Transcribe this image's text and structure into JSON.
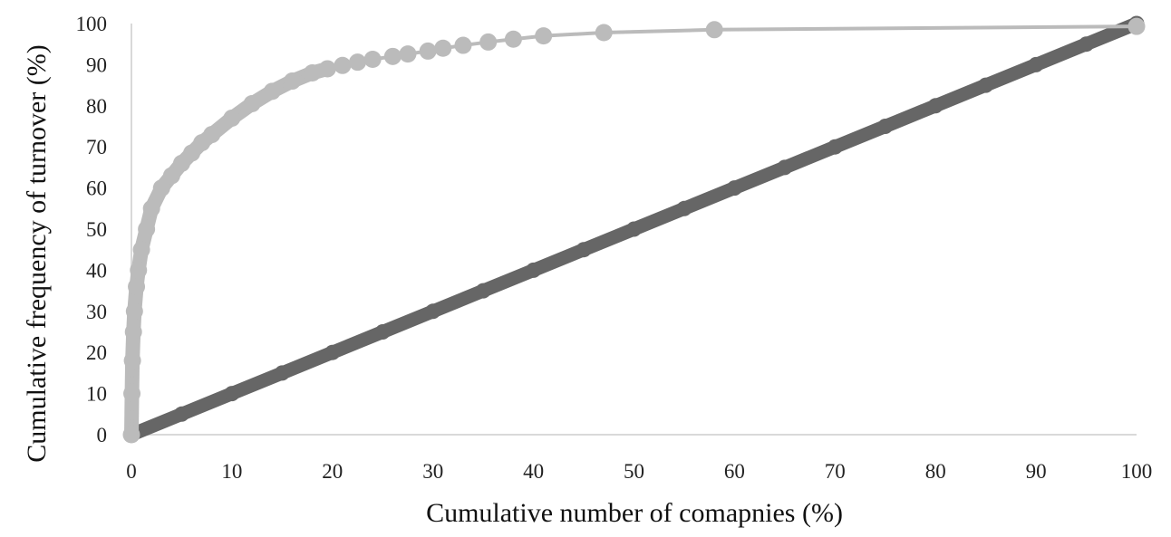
{
  "chart_data": {
    "type": "scatter",
    "title": "",
    "xlabel": "Cumulative number of comapnies (%)",
    "ylabel": "Cumulative frequency of turnover (%)",
    "xlim": [
      0,
      100
    ],
    "ylim": [
      0,
      100
    ],
    "x_ticks": [
      "0",
      "10",
      "20",
      "30",
      "40",
      "50",
      "60",
      "70",
      "80",
      "90",
      "100"
    ],
    "y_ticks": [
      "0",
      "10",
      "20",
      "30",
      "40",
      "50",
      "60",
      "70",
      "80",
      "90",
      "100"
    ],
    "grid": false,
    "legend": "none",
    "series": [
      {
        "color": "#666666",
        "x": [
          0,
          5,
          10,
          15,
          20,
          25,
          30,
          35,
          40,
          45,
          50,
          55,
          60,
          65,
          70,
          75,
          80,
          85,
          90,
          95,
          100
        ],
        "y": [
          0,
          5,
          10,
          15,
          20,
          25,
          30,
          35,
          40,
          45,
          50,
          55,
          60,
          65,
          70,
          75,
          80,
          85,
          90,
          95,
          100
        ]
      },
      {
        "color": "#bbbbbb",
        "x": [
          0,
          0.05,
          0.1,
          0.2,
          0.3,
          0.5,
          0.7,
          1.0,
          1.5,
          2.0,
          3.0,
          4.0,
          5.0,
          6.0,
          7.0,
          8.0,
          10.0,
          12.0,
          14.0,
          16.0,
          18.0,
          19.5,
          21.0,
          22.5,
          24.0,
          26.0,
          27.5,
          29.5,
          31.0,
          33.0,
          35.5,
          38.0,
          41.0,
          47.0,
          58.0,
          100.0
        ],
        "y": [
          0,
          10,
          18,
          25,
          30,
          36,
          40,
          45,
          50,
          55,
          60,
          63,
          66,
          68.5,
          71,
          73,
          77,
          80.5,
          83.5,
          86,
          88,
          89,
          89.8,
          90.6,
          91.3,
          92,
          92.6,
          93.3,
          94,
          94.7,
          95.5,
          96.2,
          97,
          97.8,
          98.5,
          99.3
        ]
      }
    ]
  }
}
